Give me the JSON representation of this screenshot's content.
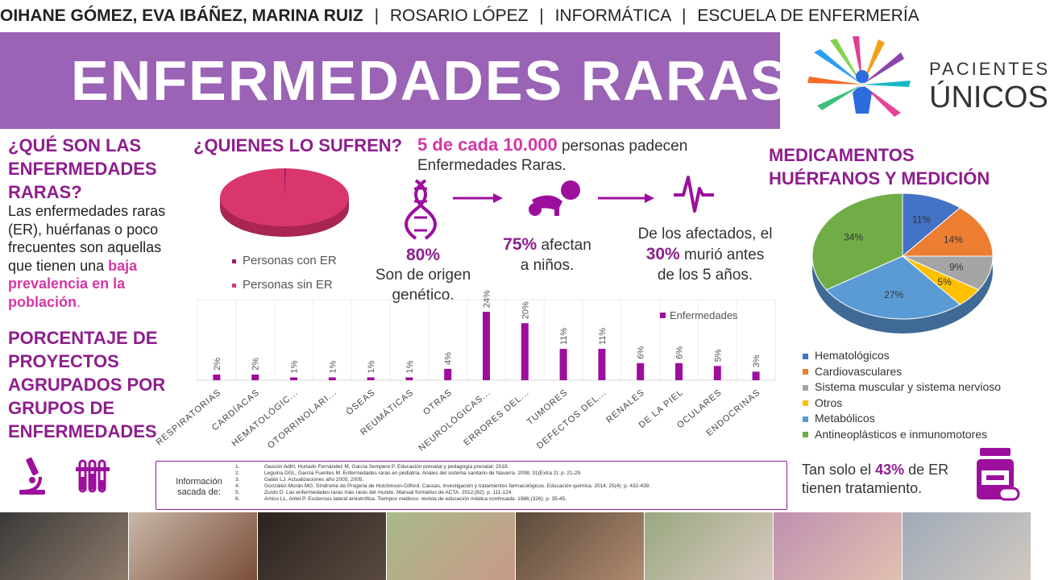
{
  "header": {
    "authors": "OIHANE GÓMEZ, EVA IBÁÑEZ, MARINA RUIZ",
    "sep": "|",
    "tutor": "ROSARIO LÓPEZ",
    "subject": "INFORMÁTICA",
    "school": "ESCUELA DE ENFERMERÍA"
  },
  "title": "ENFERMEDADES RARAS",
  "logo": {
    "line1": "PACIENTES",
    "line2": "ÚNICOS"
  },
  "what": {
    "title": "¿QUÉ SON LAS ENFERMEDADES RARAS?",
    "body_start": "Las enfermedades raras (ER), huérfanas o poco frecuentes son aquellas que tienen una ",
    "body_highlight": "baja prevalencia en la población",
    "body_end": "."
  },
  "projects_title": "PORCENTAJE DE PROYECTOS AGRUPADOS POR GRUPOS DE ENFERMEDADES",
  "who": {
    "title": "¿QUIENES LO SUFREN?",
    "legend_with": "Personas con ER",
    "legend_without": "Personas sin ER"
  },
  "stats": {
    "main_num": "5 de cada 10.000",
    "main_text": " personas padecen Enfermedades Raras.",
    "genetic_num": "80%",
    "genetic_text": "Son de origen genético.",
    "children_num": "75%",
    "children_text1": " afectan",
    "children_text2": "a niños.",
    "death_text1": "De los afectados, el",
    "death_num": "30%",
    "death_text2": " murió antes",
    "death_text3": "de los 5 años."
  },
  "chart_data": [
    {
      "type": "bar",
      "series": [
        {
          "name": "Enfermedades",
          "values": [
            2,
            2,
            1,
            1,
            1,
            1,
            4,
            24,
            20,
            11,
            11,
            6,
            6,
            5,
            3
          ]
        }
      ],
      "categories": [
        "RESPIRATORIAS",
        "CARDÍACAS",
        "HEMATOLÓGIC...",
        "OTORRINOLARI...",
        "ÓSEAS",
        "REUMÁTICAS",
        "OTRAS",
        "NEUROLÓGICAS...",
        "ERRORES DEL...",
        "TUMORES",
        "DEFECTOS DEL...",
        "RENALES",
        "DE LA PIEL",
        "OCULARES",
        "ENDOCRINAS"
      ],
      "data_labels": [
        "2%",
        "2%",
        "1%",
        "1%",
        "1%",
        "1%",
        "4%",
        "24%",
        "20%",
        "11%",
        "11%",
        "6%",
        "6%",
        "5%",
        "3%"
      ],
      "unit": "%",
      "ylim": [
        0,
        26
      ],
      "grid": false,
      "legend": "top-right",
      "color": "#9c0f9c"
    },
    {
      "type": "pie",
      "labels": [
        "Hematológicos",
        "Cardiovasculares",
        "Sistema muscular y sistema nervioso",
        "Otros",
        "Metabólicos",
        "Antineoplásticos e inmunomotores"
      ],
      "values": [
        11,
        14,
        9,
        5,
        27,
        34
      ],
      "data_labels": [
        "11%",
        "14%",
        "9%",
        "5%",
        "27%",
        "34%"
      ],
      "colors": [
        "#4472c4",
        "#ed7d31",
        "#a5a5a5",
        "#ffc000",
        "#5b9bd5",
        "#70ad47"
      ],
      "legend": "bottom"
    },
    {
      "type": "pie",
      "labels": [
        "Personas con ER",
        "Personas sin ER"
      ],
      "values": [
        0.05,
        99.95
      ],
      "colors": [
        "#9c1a6e",
        "#d9376b"
      ],
      "legend": "bottom"
    }
  ],
  "meds": {
    "title_line1": "MEDICAMENTOS",
    "title_line2": "HUÉRFANOS Y MEDICIÓN"
  },
  "treatment": {
    "text1": "Tan solo el ",
    "num": "43%",
    "text2": " de ER tienen tratamiento."
  },
  "info": {
    "label": "Información sacada de:",
    "refs": [
      {
        "n": "1.",
        "text": "Gascón AdlH, Hurtado Fernández M, García Sempere P. Educación prenatal y pedagogía prenatal; 2018."
      },
      {
        "n": "2.",
        "text": "Leguina DGL, García Fuentes M. Enfermedades raras en pediatría. Anales del sistema sanitario de Navarra. 2008; 31(Extra 2): p. 21-29."
      },
      {
        "n": "3.",
        "text": "Galán LJ. Actualizaciones año 2005; 2005."
      },
      {
        "n": "4.",
        "text": "González-Morán MG. Síndrome de Progeria de Hutchinson-Gilford. Causas, investigación y tratamientos farmacológicos. Educación química. 2014; 25(4): p. 432-439."
      },
      {
        "n": "5.",
        "text": "Zurdo D. Las enfermedades raras más raras del mundo. Manual formativo de ACTA. 2012;(62): p. 111-124."
      },
      {
        "n": "6.",
        "text": "Amico LL, Antel P. Esclerosis lateral amiotrófica. Tiempos médicos: revista de educación médica continuada. 1986;(326): p. 35-45."
      }
    ]
  },
  "icons": [
    "dna-icon",
    "arrow-right-icon",
    "baby-crawling-icon",
    "heartbeat-icon",
    "microscope-icon",
    "test-tubes-icon",
    "medicine-bottle-icon"
  ],
  "colors": {
    "banner": "#9a63b5",
    "purple": "#8e1e8e",
    "pink": "#d437a6"
  }
}
